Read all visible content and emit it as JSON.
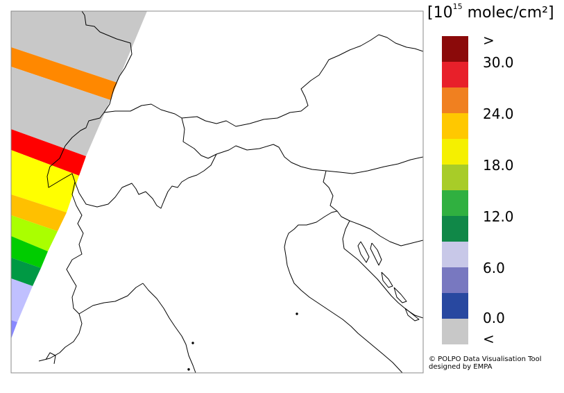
{
  "legend": {
    "title_prefix": "[10",
    "title_exponent": "15",
    "title_suffix": " molec/cm²]",
    "labels": {
      "above": ">",
      "v30": "30.0",
      "v24": "24.0",
      "v18": "18.0",
      "v12": "12.0",
      "v6": "6.0",
      "v0": "0.0",
      "below": "<"
    },
    "swatch_colors": [
      "#8b0a0a",
      "#e8202a",
      "#f08020",
      "#ffc800",
      "#f5f000",
      "#a8cc28",
      "#30b040",
      "#108848",
      "#c8c8e8",
      "#7878c0",
      "#2848a0",
      "#c8c8c8"
    ]
  },
  "swath_colors": [
    "#c8c8c8",
    "#ff8800",
    "#c8c8c8",
    "#ff0000",
    "#ffff00",
    "#ffc000",
    "#aaff00",
    "#00cc00",
    "#009944",
    "#c0c0ff",
    "#8888ff"
  ],
  "credit": {
    "line1": "© POLPO Data Visualisation Tool",
    "line2": "designed by EMPA"
  }
}
